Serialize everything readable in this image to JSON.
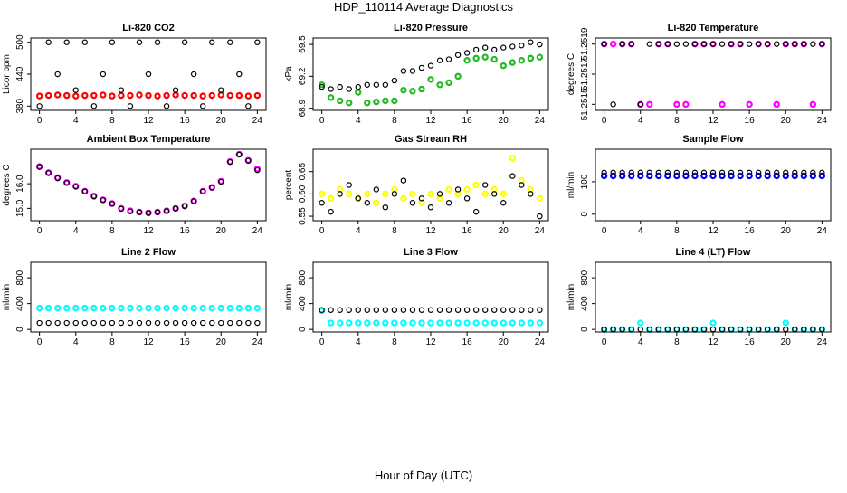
{
  "title": "HDP_110114  Average Diagnostics",
  "xlabel": "Hour of Day (UTC)",
  "chart_data": [
    {
      "type": "scatter",
      "title": "Li-820 CO2",
      "ylabel": "Licor ppm",
      "xlim": [
        -0.96,
        24.96
      ],
      "xticks": [
        0,
        4,
        8,
        12,
        16,
        20,
        24
      ],
      "ylim": [
        372,
        508
      ],
      "yticks": [
        380,
        440,
        500
      ],
      "x": [
        0,
        1,
        2,
        3,
        4,
        5,
        6,
        7,
        8,
        9,
        10,
        11,
        12,
        13,
        14,
        15,
        16,
        17,
        18,
        19,
        20,
        21,
        22,
        23,
        24
      ],
      "series": [
        {
          "color": "#ff0000",
          "values": [
            399,
            400,
            401,
            400,
            399,
            400,
            400,
            401,
            399,
            400,
            400,
            401,
            400,
            399,
            400,
            401,
            400,
            400,
            399,
            400,
            401,
            400,
            400,
            399,
            400
          ]
        },
        {
          "color": "#000000",
          "values": [
            380,
            500,
            440,
            500,
            410,
            500,
            380,
            440,
            500,
            410,
            380,
            500,
            440,
            500,
            380,
            410,
            500,
            440,
            380,
            500,
            410,
            500,
            440,
            380,
            500
          ]
        }
      ]
    },
    {
      "type": "scatter",
      "title": "Li-820 Pressure",
      "ylabel": "kPa",
      "xlim": [
        -0.96,
        24.96
      ],
      "xticks": [
        0,
        4,
        8,
        12,
        16,
        20,
        24
      ],
      "ylim": [
        68.88,
        69.56
      ],
      "yticks": [
        68.9,
        69.2,
        69.5
      ],
      "x": [
        0,
        1,
        2,
        3,
        4,
        5,
        6,
        7,
        8,
        9,
        10,
        11,
        12,
        13,
        14,
        15,
        16,
        17,
        18,
        19,
        20,
        21,
        22,
        23,
        24
      ],
      "series": [
        {
          "color": "#22bb22",
          "values": [
            69.12,
            69.0,
            68.97,
            68.95,
            69.05,
            68.95,
            68.96,
            68.97,
            68.97,
            69.07,
            69.06,
            69.08,
            69.17,
            69.12,
            69.14,
            69.2,
            69.35,
            69.37,
            69.38,
            69.36,
            69.3,
            69.33,
            69.35,
            69.37,
            69.38
          ]
        },
        {
          "color": "#000000",
          "values": [
            69.1,
            69.08,
            69.1,
            69.08,
            69.1,
            69.12,
            69.12,
            69.12,
            69.16,
            69.25,
            69.25,
            69.28,
            69.3,
            69.35,
            69.36,
            69.4,
            69.42,
            69.45,
            69.47,
            69.45,
            69.47,
            69.48,
            69.49,
            69.52,
            69.5
          ]
        }
      ]
    },
    {
      "type": "scatter",
      "title": "Li-820 Temperature",
      "ylabel": "degrees C",
      "xlim": [
        -0.96,
        24.96
      ],
      "xticks": [
        0,
        4,
        8,
        12,
        16,
        20,
        24
      ],
      "ylim": [
        51.25146,
        51.25194
      ],
      "yticks": [
        51.2515,
        51.2517,
        51.2519
      ],
      "x": [
        0,
        1,
        2,
        3,
        4,
        5,
        6,
        7,
        8,
        9,
        10,
        11,
        12,
        13,
        14,
        15,
        16,
        17,
        18,
        19,
        20,
        21,
        22,
        23,
        24
      ],
      "series": [
        {
          "color": "#ff00ff",
          "values": [
            51.2519,
            51.2519,
            51.2519,
            51.2519,
            51.2515,
            51.2515,
            51.2519,
            51.2519,
            51.2515,
            51.2515,
            51.2519,
            51.2519,
            51.2519,
            51.2515,
            51.2519,
            51.2519,
            51.2515,
            51.2519,
            51.2519,
            51.2515,
            51.2519,
            51.2519,
            51.2519,
            51.2515,
            51.2519
          ]
        },
        {
          "color": "#000000",
          "values": [
            51.2519,
            51.2515,
            51.2519,
            51.2519,
            51.2515,
            51.2519,
            51.2519,
            51.2519,
            51.2519,
            51.2519,
            51.2519,
            51.2519,
            51.2519,
            51.2519,
            51.2519,
            51.2519,
            51.2519,
            51.2519,
            51.2519,
            51.2519,
            51.2519,
            51.2519,
            51.2519,
            51.2519,
            51.2519
          ]
        }
      ]
    },
    {
      "type": "scatter",
      "title": "Ambient Box Temperature",
      "ylabel": "degrees C",
      "xlim": [
        -0.96,
        24.96
      ],
      "xticks": [
        0,
        4,
        8,
        12,
        16,
        20,
        24
      ],
      "ylim": [
        14.5,
        17.4
      ],
      "yticks": [
        {
          "value": 15,
          "label": "15.0"
        },
        {
          "value": 16,
          "label": "16.0"
        }
      ],
      "x": [
        0,
        1,
        2,
        3,
        4,
        5,
        6,
        7,
        8,
        9,
        10,
        11,
        12,
        13,
        14,
        15,
        16,
        17,
        18,
        19,
        20,
        21,
        22,
        23,
        24
      ],
      "series": [
        {
          "color": "#ff00ff",
          "values": [
            16.7,
            16.45,
            16.25,
            16.05,
            15.9,
            15.7,
            15.5,
            15.35,
            15.2,
            15.0,
            14.9,
            14.85,
            14.82,
            14.85,
            14.9,
            15.0,
            15.1,
            15.3,
            15.7,
            15.85,
            16.1,
            16.9,
            17.2,
            16.95,
            16.6
          ]
        },
        {
          "color": "#000000",
          "values": [
            16.68,
            16.43,
            16.22,
            16.03,
            15.88,
            15.68,
            15.48,
            15.33,
            15.18,
            14.98,
            14.88,
            14.84,
            14.81,
            14.84,
            14.89,
            14.99,
            15.09,
            15.29,
            15.68,
            15.84,
            16.08,
            16.88,
            17.18,
            16.93,
            16.55
          ]
        }
      ]
    },
    {
      "type": "scatter",
      "title": "Gas Stream RH",
      "ylabel": "percent",
      "xlim": [
        -0.96,
        24.96
      ],
      "xticks": [
        0,
        4,
        8,
        12,
        16,
        20,
        24
      ],
      "ylim": [
        0.54,
        0.7
      ],
      "yticks": [
        0.55,
        {
          "value": 0.6,
          "label": "0.60"
        },
        0.65
      ],
      "x": [
        0,
        1,
        2,
        3,
        4,
        5,
        6,
        7,
        8,
        9,
        10,
        11,
        12,
        13,
        14,
        15,
        16,
        17,
        18,
        19,
        20,
        21,
        22,
        23,
        24
      ],
      "series": [
        {
          "color": "#ffff00",
          "values": [
            0.6,
            0.59,
            0.61,
            0.6,
            0.59,
            0.6,
            0.58,
            0.6,
            0.61,
            0.59,
            0.6,
            0.58,
            0.6,
            0.59,
            0.61,
            0.6,
            0.61,
            0.62,
            0.6,
            0.61,
            0.6,
            0.68,
            0.63,
            0.61,
            0.59
          ]
        },
        {
          "color": "#000000",
          "values": [
            0.58,
            0.56,
            0.6,
            0.62,
            0.59,
            0.58,
            0.61,
            0.57,
            0.6,
            0.63,
            0.58,
            0.59,
            0.57,
            0.6,
            0.58,
            0.61,
            0.59,
            0.56,
            0.62,
            0.6,
            0.58,
            0.64,
            0.62,
            0.6,
            0.55
          ]
        }
      ]
    },
    {
      "type": "scatter",
      "title": "Sample Flow",
      "ylabel": "ml/min",
      "xlim": [
        -0.96,
        24.96
      ],
      "xticks": [
        0,
        4,
        8,
        12,
        16,
        20,
        24
      ],
      "ylim": [
        -20,
        200
      ],
      "yticks": [
        0,
        100
      ],
      "x": [
        0,
        1,
        2,
        3,
        4,
        5,
        6,
        7,
        8,
        9,
        10,
        11,
        12,
        13,
        14,
        15,
        16,
        17,
        18,
        19,
        20,
        21,
        22,
        23,
        24
      ],
      "series": [
        {
          "color": "#0000ff",
          "values": [
            118,
            118,
            118,
            118,
            118,
            118,
            118,
            118,
            118,
            118,
            118,
            118,
            118,
            118,
            118,
            118,
            118,
            118,
            118,
            118,
            118,
            118,
            118,
            118,
            118
          ]
        },
        {
          "color": "#000000",
          "values": [
            128,
            128,
            128,
            128,
            128,
            128,
            128,
            128,
            128,
            128,
            128,
            128,
            128,
            128,
            128,
            128,
            128,
            128,
            128,
            128,
            128,
            128,
            128,
            128,
            128
          ]
        }
      ]
    },
    {
      "type": "scatter",
      "title": "Line 2 Flow",
      "ylabel": "ml/min",
      "xlim": [
        -0.96,
        24.96
      ],
      "xticks": [
        0,
        4,
        8,
        12,
        16,
        20,
        24
      ],
      "ylim": [
        -40,
        1040
      ],
      "yticks": [
        0,
        400,
        800
      ],
      "x": [
        0,
        1,
        2,
        3,
        4,
        5,
        6,
        7,
        8,
        9,
        10,
        11,
        12,
        13,
        14,
        15,
        16,
        17,
        18,
        19,
        20,
        21,
        22,
        23,
        24
      ],
      "series": [
        {
          "color": "#00ffff",
          "values": [
            330,
            330,
            330,
            330,
            330,
            330,
            330,
            330,
            330,
            330,
            330,
            330,
            330,
            330,
            330,
            330,
            330,
            330,
            330,
            330,
            330,
            330,
            330,
            330,
            330
          ]
        },
        {
          "color": "#000000",
          "values": [
            100,
            100,
            100,
            100,
            100,
            100,
            100,
            100,
            100,
            100,
            100,
            100,
            100,
            100,
            100,
            100,
            100,
            100,
            100,
            100,
            100,
            100,
            100,
            100,
            100
          ]
        }
      ]
    },
    {
      "type": "scatter",
      "title": "Line 3 Flow",
      "ylabel": "ml/min",
      "xlim": [
        -0.96,
        24.96
      ],
      "xticks": [
        0,
        4,
        8,
        12,
        16,
        20,
        24
      ],
      "ylim": [
        -40,
        1040
      ],
      "yticks": [
        0,
        400,
        800
      ],
      "x": [
        0,
        1,
        2,
        3,
        4,
        5,
        6,
        7,
        8,
        9,
        10,
        11,
        12,
        13,
        14,
        15,
        16,
        17,
        18,
        19,
        20,
        21,
        22,
        23,
        24
      ],
      "series": [
        {
          "color": "#00ffff",
          "values": [
            290,
            100,
            100,
            100,
            100,
            100,
            100,
            100,
            100,
            100,
            100,
            100,
            100,
            100,
            100,
            100,
            100,
            100,
            100,
            100,
            100,
            100,
            100,
            100,
            100
          ]
        },
        {
          "color": "#000000",
          "values": [
            300,
            300,
            300,
            300,
            300,
            300,
            300,
            300,
            300,
            300,
            300,
            300,
            300,
            300,
            300,
            300,
            300,
            300,
            300,
            300,
            300,
            300,
            300,
            300,
            300
          ]
        }
      ]
    },
    {
      "type": "scatter",
      "title": "Line 4 (LT) Flow",
      "ylabel": "ml/min",
      "xlim": [
        -0.96,
        24.96
      ],
      "xticks": [
        0,
        4,
        8,
        12,
        16,
        20,
        24
      ],
      "ylim": [
        -40,
        1040
      ],
      "yticks": [
        0,
        400,
        800
      ],
      "x": [
        0,
        1,
        2,
        3,
        4,
        5,
        6,
        7,
        8,
        9,
        10,
        11,
        12,
        13,
        14,
        15,
        16,
        17,
        18,
        19,
        20,
        21,
        22,
        23,
        24
      ],
      "series": [
        {
          "color": "#00ffff",
          "values": [
            0,
            0,
            0,
            0,
            100,
            0,
            0,
            0,
            0,
            0,
            0,
            0,
            100,
            0,
            0,
            0,
            0,
            0,
            0,
            0,
            100,
            0,
            0,
            0,
            0
          ]
        },
        {
          "color": "#000000",
          "values": [
            0,
            0,
            0,
            0,
            0,
            0,
            0,
            0,
            0,
            0,
            0,
            0,
            0,
            0,
            0,
            0,
            0,
            0,
            0,
            0,
            0,
            0,
            0,
            0,
            0
          ]
        }
      ]
    }
  ]
}
